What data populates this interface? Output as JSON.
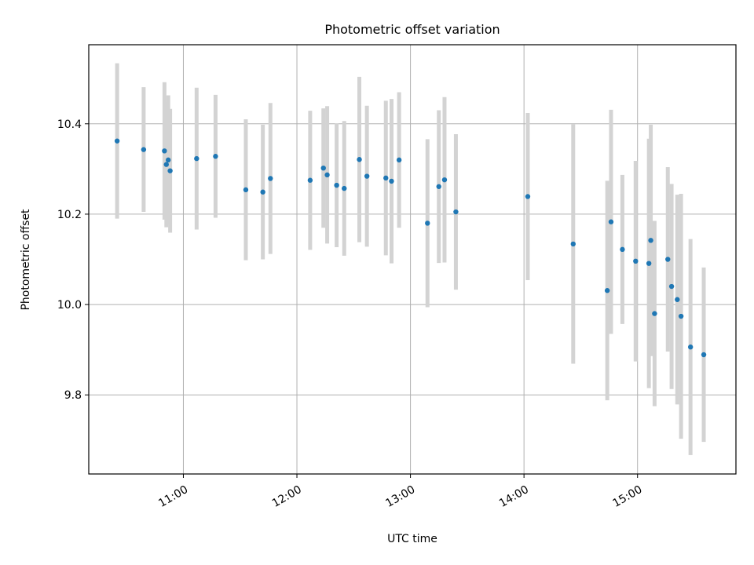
{
  "chart_data": {
    "type": "scatter",
    "title": "Photometric offset variation",
    "xlabel": "UTC time",
    "ylabel": "Photometric offset",
    "x_range": [
      "10:10",
      "15:52"
    ],
    "ylim": [
      9.625,
      10.575
    ],
    "x_ticks": [
      "11:00",
      "12:00",
      "13:00",
      "14:00",
      "15:00"
    ],
    "y_ticks": [
      9.8,
      10.0,
      10.2,
      10.4
    ],
    "y_tick_labels": [
      "9.8",
      "10.0",
      "10.2",
      "10.4"
    ],
    "grid": true,
    "point_color": "#1f77b4",
    "errorbar_color": "#d3d3d3",
    "points": [
      {
        "x": "10:25",
        "y": 10.362,
        "yerr": 0.172
      },
      {
        "x": "10:39",
        "y": 10.343,
        "yerr": 0.138
      },
      {
        "x": "10:50",
        "y": 10.34,
        "yerr": 0.152
      },
      {
        "x": "10:51",
        "y": 10.31,
        "yerr": 0.139
      },
      {
        "x": "10:52",
        "y": 10.32,
        "yerr": 0.143
      },
      {
        "x": "10:53",
        "y": 10.296,
        "yerr": 0.137
      },
      {
        "x": "11:07",
        "y": 10.323,
        "yerr": 0.157
      },
      {
        "x": "11:17",
        "y": 10.328,
        "yerr": 0.136
      },
      {
        "x": "11:33",
        "y": 10.254,
        "yerr": 0.156
      },
      {
        "x": "11:42",
        "y": 10.249,
        "yerr": 0.149
      },
      {
        "x": "11:46",
        "y": 10.279,
        "yerr": 0.167
      },
      {
        "x": "12:07",
        "y": 10.275,
        "yerr": 0.154
      },
      {
        "x": "12:14",
        "y": 10.302,
        "yerr": 0.132
      },
      {
        "x": "12:16",
        "y": 10.287,
        "yerr": 0.152
      },
      {
        "x": "12:21",
        "y": 10.264,
        "yerr": 0.137
      },
      {
        "x": "12:25",
        "y": 10.257,
        "yerr": 0.149
      },
      {
        "x": "12:33",
        "y": 10.321,
        "yerr": 0.183
      },
      {
        "x": "12:37",
        "y": 10.284,
        "yerr": 0.156
      },
      {
        "x": "12:47",
        "y": 10.28,
        "yerr": 0.171
      },
      {
        "x": "12:50",
        "y": 10.273,
        "yerr": 0.182
      },
      {
        "x": "12:54",
        "y": 10.32,
        "yerr": 0.15
      },
      {
        "x": "13:09",
        "y": 10.18,
        "yerr": 0.186
      },
      {
        "x": "13:15",
        "y": 10.261,
        "yerr": 0.169
      },
      {
        "x": "13:18",
        "y": 10.276,
        "yerr": 0.183
      },
      {
        "x": "13:24",
        "y": 10.205,
        "yerr": 0.172
      },
      {
        "x": "14:02",
        "y": 10.239,
        "yerr": 0.185
      },
      {
        "x": "14:26",
        "y": 10.134,
        "yerr": 0.265
      },
      {
        "x": "14:44",
        "y": 10.031,
        "yerr": 0.243
      },
      {
        "x": "14:46",
        "y": 10.183,
        "yerr": 0.248
      },
      {
        "x": "14:52",
        "y": 10.122,
        "yerr": 0.165
      },
      {
        "x": "14:59",
        "y": 10.096,
        "yerr": 0.222
      },
      {
        "x": "15:06",
        "y": 10.091,
        "yerr": 0.276
      },
      {
        "x": "15:07",
        "y": 10.142,
        "yerr": 0.256
      },
      {
        "x": "15:09",
        "y": 9.98,
        "yerr": 0.205
      },
      {
        "x": "15:16",
        "y": 10.1,
        "yerr": 0.204
      },
      {
        "x": "15:18",
        "y": 10.04,
        "yerr": 0.227
      },
      {
        "x": "15:21",
        "y": 10.011,
        "yerr": 0.232
      },
      {
        "x": "15:23",
        "y": 9.974,
        "yerr": 0.271
      },
      {
        "x": "15:28",
        "y": 9.906,
        "yerr": 0.239
      },
      {
        "x": "15:35",
        "y": 9.889,
        "yerr": 0.193
      }
    ]
  }
}
